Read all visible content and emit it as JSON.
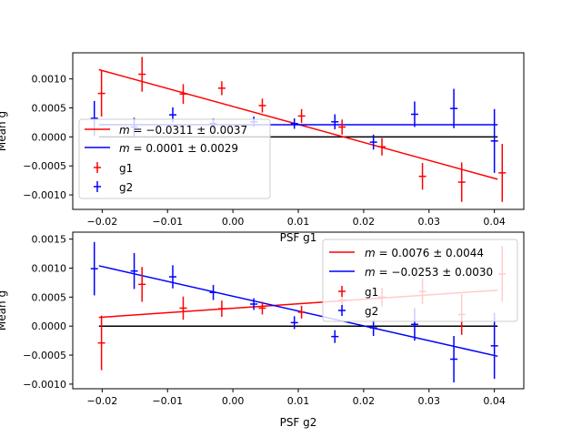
{
  "chart_data": [
    {
      "type": "scatter",
      "xlabel": "PSF g1",
      "ylabel": "Mean g",
      "xlim": [
        -0.0245,
        0.0445
      ],
      "ylim": [
        -0.00125,
        0.00145
      ],
      "xticks": [
        -0.02,
        -0.01,
        0.0,
        0.01,
        0.02,
        0.03,
        0.04
      ],
      "xtick_labels": [
        "−0.02",
        "−0.01",
        "0.00",
        "0.01",
        "0.02",
        "0.03",
        "0.04"
      ],
      "yticks": [
        -0.001,
        -0.0005,
        0.0,
        0.0005,
        0.001
      ],
      "ytick_labels": [
        "−0.0010",
        "−0.0005",
        "0.0000",
        "0.0005",
        "0.0010"
      ],
      "legend_position": "lower-left",
      "zero_line": {
        "x": [
          -0.0205,
          0.0405
        ],
        "y": 0.0,
        "color": "#000000"
      },
      "fits": [
        {
          "name": "g1",
          "label": "m = −0.0311 ± 0.0037",
          "m_text": "m",
          "eq_text": " = −0.0311 ± 0.0037",
          "color": "#ff0000",
          "x": [
            -0.0205,
            0.0405
          ],
          "y": [
            0.00116,
            -0.00073
          ]
        },
        {
          "name": "g2",
          "label": "m = 0.0001 ± 0.0029",
          "m_text": "m",
          "eq_text": " = 0.0001 ± 0.0029",
          "color": "#0000ff",
          "x": [
            -0.0205,
            0.0405
          ],
          "y": [
            0.00021,
            0.00021
          ]
        }
      ],
      "series": [
        {
          "name": "g1",
          "color": "#ff0000",
          "x": [
            -0.0201,
            -0.0139,
            -0.0076,
            -0.0017,
            0.0045,
            0.0105,
            0.0167,
            0.0228,
            0.029,
            0.035,
            0.0412
          ],
          "y": [
            0.00075,
            0.00108,
            0.00074,
            0.00084,
            0.00054,
            0.00036,
            0.00017,
            -0.00017,
            -0.00068,
            -0.00078,
            -0.00062
          ],
          "err": [
            0.0004,
            0.0003,
            0.00017,
            0.00012,
            0.00012,
            0.00012,
            0.00013,
            0.00015,
            0.00023,
            0.00034,
            0.0005
          ]
        },
        {
          "name": "g2",
          "color": "#0000ff",
          "x": [
            -0.0212,
            -0.0151,
            -0.0092,
            -0.003,
            0.0032,
            0.0094,
            0.0156,
            0.0215,
            0.0278,
            0.0338,
            0.04
          ],
          "y": [
            0.00032,
            0.00017,
            0.00038,
            0.00023,
            0.00026,
            0.00023,
            0.00026,
            -9e-05,
            0.00039,
            0.00049,
            -7e-05
          ],
          "err": [
            0.0003,
            0.00016,
            0.00013,
            9e-05,
            9e-05,
            9e-05,
            0.00013,
            0.00013,
            0.00022,
            0.00034,
            0.00055
          ]
        }
      ]
    },
    {
      "type": "scatter",
      "xlabel": "PSF g2",
      "ylabel": "Mean g",
      "xlim": [
        -0.0245,
        0.0445
      ],
      "ylim": [
        -0.00108,
        0.00162
      ],
      "xticks": [
        -0.02,
        -0.01,
        0.0,
        0.01,
        0.02,
        0.03,
        0.04
      ],
      "xtick_labels": [
        "−0.02",
        "−0.01",
        "0.00",
        "0.01",
        "0.02",
        "0.03",
        "0.04"
      ],
      "yticks": [
        -0.001,
        -0.0005,
        0.0,
        0.0005,
        0.001,
        0.0015
      ],
      "ytick_labels": [
        "−0.0010",
        "−0.0005",
        "0.0000",
        "0.0005",
        "0.0010",
        "0.0015"
      ],
      "legend_position": "upper-right",
      "zero_line": {
        "x": [
          -0.0205,
          0.0405
        ],
        "y": 0.0,
        "color": "#000000"
      },
      "fits": [
        {
          "name": "g1",
          "label": "m = 0.0076 ± 0.0044",
          "m_text": "m",
          "eq_text": " = 0.0076 ± 0.0044",
          "color": "#ff0000",
          "x": [
            -0.0205,
            0.0405
          ],
          "y": [
            0.00015,
            0.00062
          ]
        },
        {
          "name": "g2",
          "label": "m = −0.0253 ± 0.0030",
          "m_text": "m",
          "eq_text": " = −0.0253 ± 0.0030",
          "color": "#0000ff",
          "x": [
            -0.0205,
            0.0405
          ],
          "y": [
            0.00104,
            -0.00052
          ]
        }
      ],
      "series": [
        {
          "name": "g1",
          "color": "#ff0000",
          "x": [
            -0.0201,
            -0.0139,
            -0.0076,
            -0.0017,
            0.0045,
            0.0105,
            0.0167,
            0.0228,
            0.029,
            0.035,
            0.0412
          ],
          "y": [
            -0.00029,
            0.00072,
            0.00031,
            0.0003,
            0.00031,
            0.00024,
            0.00045,
            0.0005,
            0.0006,
            0.0002,
            0.0009
          ],
          "err": [
            0.00047,
            0.0003,
            0.0002,
            0.00014,
            0.00011,
            0.00011,
            0.00013,
            0.00016,
            0.00022,
            0.00035,
            0.00048
          ]
        },
        {
          "name": "g2",
          "color": "#0000ff",
          "x": [
            -0.0212,
            -0.0151,
            -0.0092,
            -0.003,
            0.0032,
            0.0094,
            0.0156,
            0.0215,
            0.0278,
            0.0338,
            0.04
          ],
          "y": [
            0.00099,
            0.00095,
            0.00085,
            0.00058,
            0.00038,
            6e-05,
            -0.00018,
            -3e-05,
            3e-05,
            -0.00057,
            -0.00034
          ],
          "err": [
            0.00046,
            0.00031,
            0.0002,
            0.00013,
            0.0001,
            0.00011,
            0.00011,
            0.00014,
            0.00028,
            0.0004,
            0.00057
          ]
        }
      ]
    }
  ]
}
